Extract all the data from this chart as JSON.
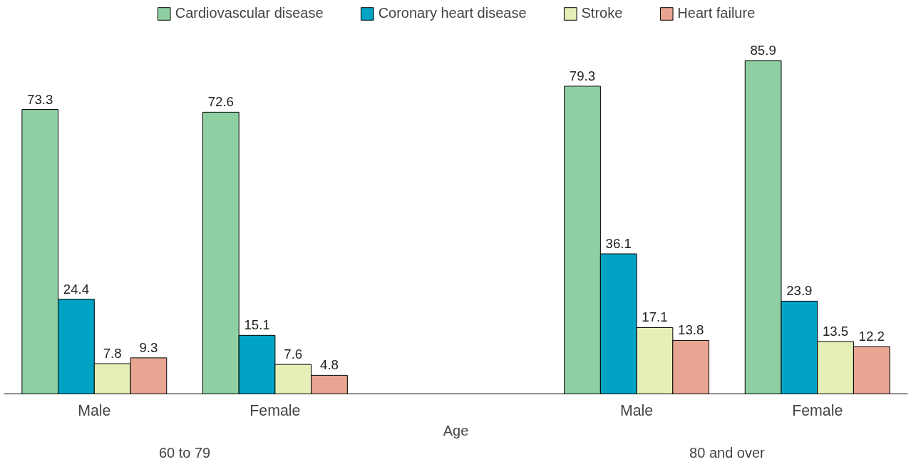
{
  "chart_data": {
    "type": "bar",
    "xlabel": "Age",
    "categories": [
      "Male",
      "Female",
      null,
      "Male",
      "Female"
    ],
    "series": [
      {
        "name": "Cardiovascular disease",
        "color": "#8fd0a3",
        "values": [
          73.3,
          72.6,
          null,
          79.3,
          85.9
        ]
      },
      {
        "name": "Coronary heart disease",
        "color": "#00a3c4",
        "values": [
          24.4,
          15.1,
          null,
          36.1,
          23.9
        ]
      },
      {
        "name": "Stroke",
        "color": "#e5efb8",
        "values": [
          7.8,
          7.6,
          null,
          17.1,
          13.5
        ]
      },
      {
        "name": "Heart failure",
        "color": "#e8a592",
        "values": [
          9.3,
          4.8,
          null,
          13.8,
          12.2
        ]
      }
    ],
    "annotations": [
      "60 to 79",
      "80 and over"
    ],
    "data_labels": true,
    "legend": "top",
    "grid": false
  }
}
